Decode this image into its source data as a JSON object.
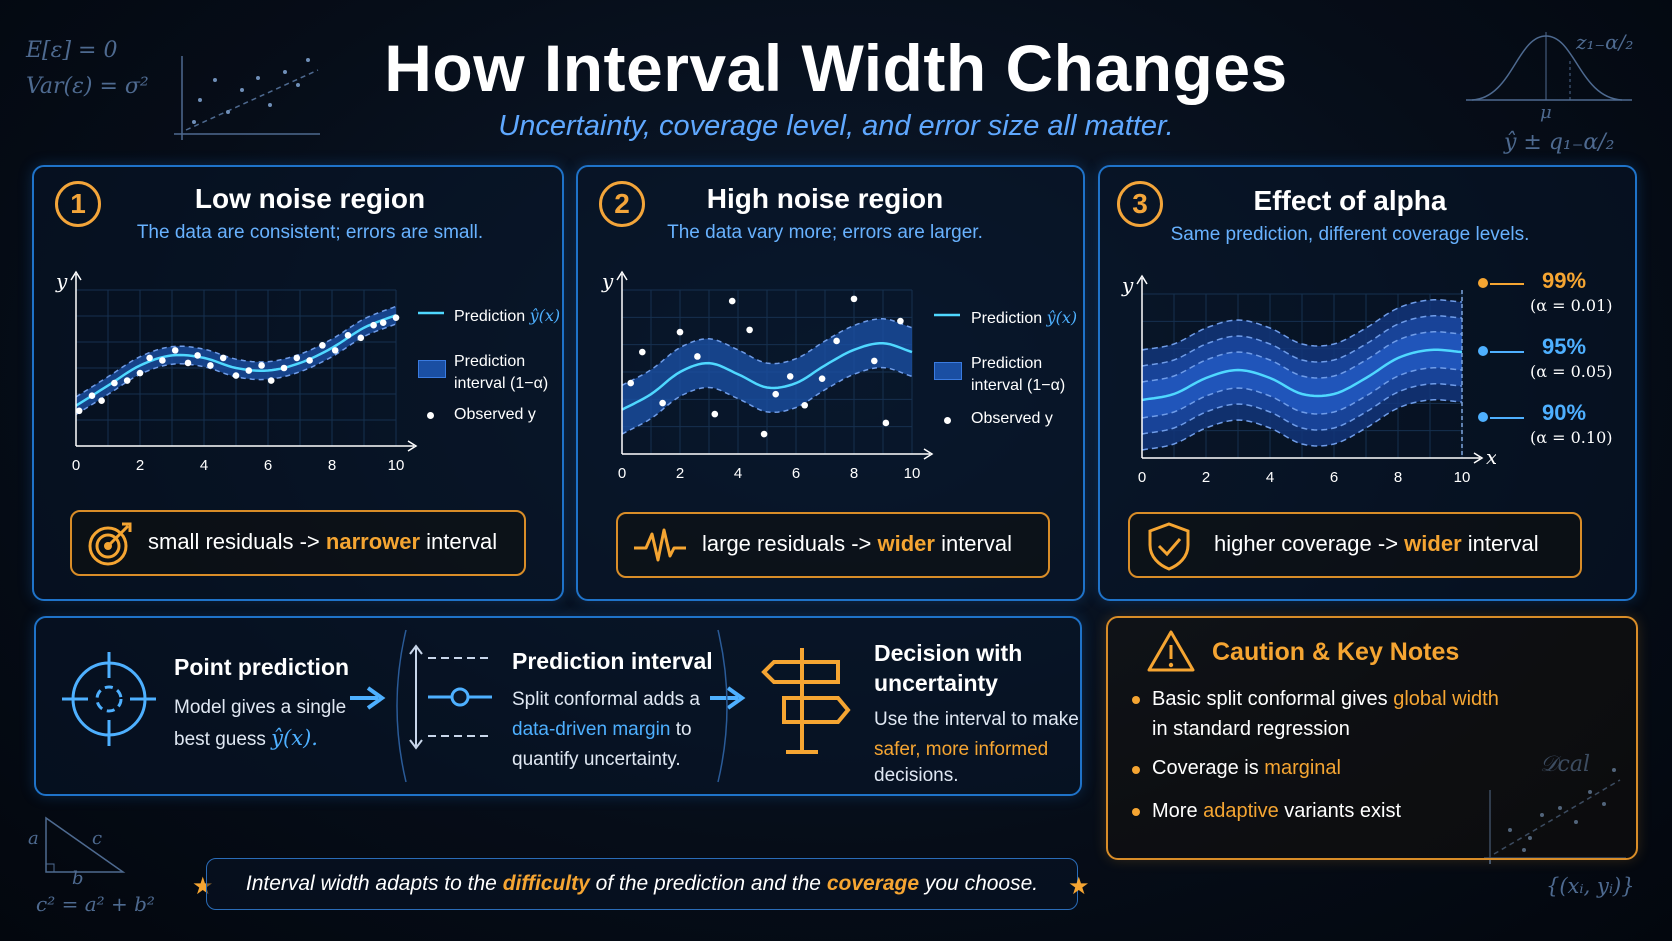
{
  "header": {
    "title": "How Interval Width Changes",
    "subtitle": "Uncertainty, coverage level, and error size all matter."
  },
  "decorations": {
    "expectation": "E[ε] = 0",
    "variance": "Var(ε) = σ²",
    "quantile": "z₁₋α/₂",
    "mu": "μ",
    "interval_formula": "ŷ ± q₁₋α/₂",
    "pythagoras": "c² = a² + b²",
    "tri_a": "a",
    "tri_b": "b",
    "tri_c": "c",
    "dcal": "𝒟cal",
    "pairs": "{(xᵢ, yᵢ)}"
  },
  "panels": [
    {
      "number": "1",
      "title": "Low noise region",
      "subtitle": "The data are consistent; errors are small.",
      "legend": {
        "prediction": "Prediction ",
        "prediction_symbol": "ŷ(x)",
        "interval_line1": "Prediction",
        "interval_line2": "interval (1−α)",
        "observed": "Observed y"
      },
      "callout": {
        "pre": "small residuals -> ",
        "highlight": "narrower",
        "post": " interval"
      },
      "icon": "target-icon"
    },
    {
      "number": "2",
      "title": "High noise region",
      "subtitle": "The data vary more; errors are larger.",
      "legend": {
        "prediction": "Prediction ",
        "prediction_symbol": "ŷ(x)",
        "interval_line1": "Prediction",
        "interval_line2": "interval (1−α)",
        "observed": "Observed y"
      },
      "callout": {
        "pre": "large residuals -> ",
        "highlight": "wider",
        "post": " interval"
      },
      "icon": "pulse-icon"
    },
    {
      "number": "3",
      "title": "Effect of alpha",
      "subtitle": "Same prediction, different coverage levels.",
      "levels": [
        {
          "pct": "99%",
          "alpha": "(α = 0.01)",
          "color": "#f5a532"
        },
        {
          "pct": "95%",
          "alpha": "(α = 0.05)",
          "color": "#4eb0ff"
        },
        {
          "pct": "90%",
          "alpha": "(α = 0.10)",
          "color": "#4eb0ff"
        }
      ],
      "callout": {
        "pre": "higher coverage -> ",
        "highlight": "wider",
        "post": " interval"
      },
      "icon": "shield-check-icon"
    }
  ],
  "axes": {
    "x_label": "x",
    "y_label": "y",
    "x_ticks": [
      "0",
      "2",
      "4",
      "6",
      "8",
      "10"
    ]
  },
  "chart_data": [
    {
      "type": "line",
      "panel": "Low noise region",
      "x_range": [
        0,
        10
      ],
      "prediction_x": [
        0,
        1,
        2,
        3,
        4,
        5,
        6,
        7,
        8,
        9,
        10
      ],
      "prediction_y": [
        3.0,
        3.8,
        4.6,
        5.0,
        4.9,
        4.5,
        4.4,
        4.7,
        5.3,
        6.1,
        6.6
      ],
      "band_halfwidth": 0.35,
      "observed_x": [
        0.1,
        0.5,
        0.8,
        1.2,
        1.6,
        2.0,
        2.3,
        2.7,
        3.1,
        3.5,
        3.8,
        4.2,
        4.6,
        5.0,
        5.4,
        5.8,
        6.1,
        6.5,
        6.9,
        7.3,
        7.7,
        8.1,
        8.5,
        8.9,
        9.3,
        9.6,
        10.0
      ],
      "observed_y": [
        2.8,
        3.4,
        3.2,
        3.9,
        4.0,
        4.3,
        4.9,
        4.8,
        5.2,
        4.7,
        5.0,
        4.6,
        4.9,
        4.2,
        4.4,
        4.6,
        4.0,
        4.5,
        4.9,
        4.8,
        5.4,
        5.2,
        5.8,
        5.7,
        6.2,
        6.3,
        6.5
      ]
    },
    {
      "type": "line",
      "panel": "High noise region",
      "x_range": [
        0,
        10
      ],
      "prediction_x": [
        0,
        1,
        2,
        3,
        4,
        5,
        6,
        7,
        8,
        9,
        10
      ],
      "prediction_y": [
        3.2,
        3.9,
        4.9,
        5.3,
        4.8,
        4.2,
        4.4,
        5.2,
        5.9,
        6.2,
        5.8
      ],
      "band_halfwidth": 1.1,
      "observed_x": [
        0.3,
        0.7,
        1.4,
        2.0,
        2.6,
        3.2,
        3.8,
        4.4,
        4.9,
        5.3,
        5.8,
        6.3,
        6.9,
        7.4,
        8.0,
        8.7,
        9.1,
        9.6
      ],
      "observed_y": [
        4.4,
        5.8,
        3.5,
        6.7,
        5.6,
        3.0,
        8.1,
        6.8,
        2.1,
        3.9,
        4.7,
        3.4,
        4.6,
        6.3,
        8.2,
        5.4,
        2.6,
        7.2
      ]
    },
    {
      "type": "area",
      "panel": "Effect of alpha",
      "x_range": [
        0,
        10
      ],
      "prediction_x": [
        0,
        1,
        2,
        3,
        4,
        5,
        6,
        7,
        8,
        9,
        10
      ],
      "prediction_y": [
        4.5,
        4.8,
        5.6,
        6.0,
        5.6,
        4.8,
        4.8,
        5.6,
        6.6,
        7.0,
        6.9
      ],
      "series": [
        {
          "name": "99%",
          "halfwidth": 2.5
        },
        {
          "name": "95%",
          "halfwidth": 1.7
        },
        {
          "name": "90%",
          "halfwidth": 0.9
        }
      ]
    }
  ],
  "flow": [
    {
      "title": "Point prediction",
      "line1": "Model gives a single",
      "line2": "best guess ",
      "symbol": "ŷ(x).",
      "icon": "crosshair-icon"
    },
    {
      "title": "Prediction interval",
      "line1": "Split conformal adds a",
      "line2_hl": "data-driven margin",
      "line2_post": " to",
      "line3": "quantify uncertainty.",
      "icon": "interval-icon"
    },
    {
      "title_line1": "Decision with",
      "title_line2": "uncertainty",
      "line1": "Use the interval to make",
      "line2_hl": "safer, more informed",
      "line3": "decisions.",
      "icon": "signpost-icon"
    }
  ],
  "caution": {
    "title": "Caution & Key Notes",
    "items": [
      {
        "pre": "Basic split conformal gives ",
        "hl": "global width",
        "post": "",
        "line2": "in standard regression"
      },
      {
        "pre": "Coverage is ",
        "hl": "marginal",
        "post": ""
      },
      {
        "pre": "More ",
        "hl": "adaptive",
        "post": " variants exist"
      }
    ]
  },
  "footer": {
    "pre": "Interval width adapts to the ",
    "hl1": "difficulty",
    "mid": " of the prediction and the ",
    "hl2": "coverage",
    "post": " you choose."
  },
  "colors": {
    "accent_blue": "#1f73c9",
    "accent_orange": "#f5a532",
    "prediction_line": "#4fd8ff",
    "band": "#1a4fa3"
  }
}
